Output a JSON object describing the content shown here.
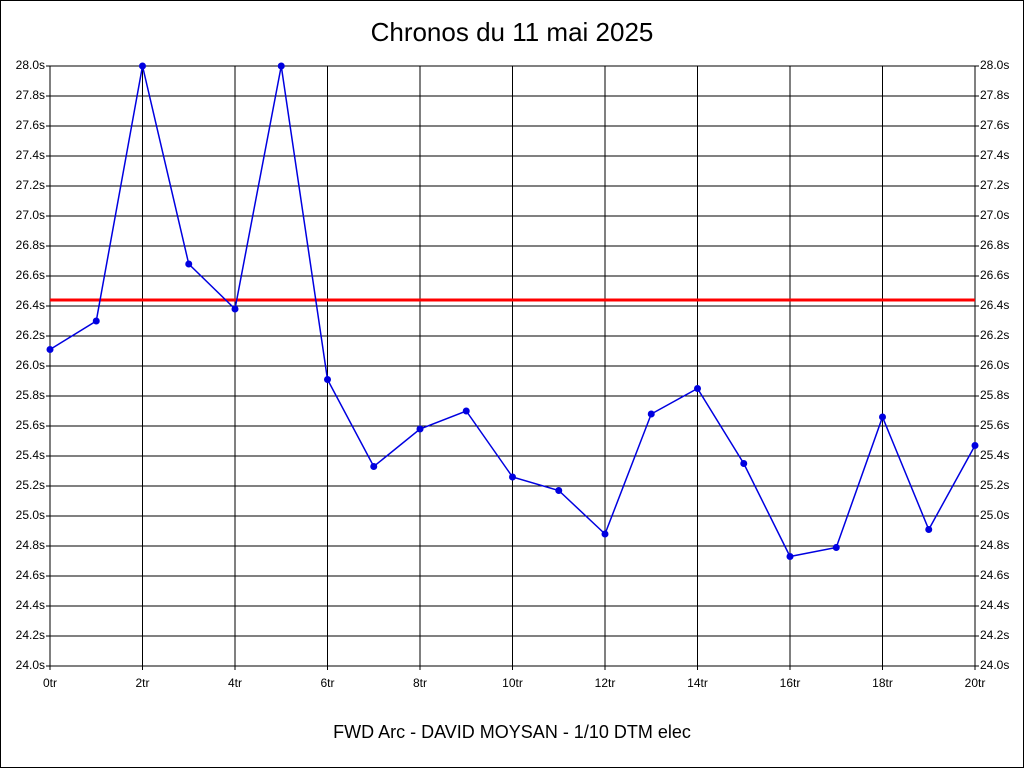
{
  "chart_data": {
    "type": "line",
    "title": "Chronos du 11 mai 2025",
    "footer": "FWD Arc - DAVID MOYSAN - 1/10 DTM elec",
    "x": [
      0,
      1,
      2,
      3,
      4,
      5,
      6,
      7,
      8,
      9,
      10,
      11,
      12,
      13,
      14,
      15,
      16,
      17,
      18,
      19,
      20
    ],
    "series": [
      {
        "color": "#0000e0",
        "values": [
          26.11,
          26.3,
          28.0,
          26.68,
          26.38,
          28.0,
          25.91,
          25.33,
          25.58,
          25.7,
          25.26,
          25.17,
          24.88,
          25.68,
          25.85,
          25.35,
          24.73,
          24.79,
          25.66,
          24.91,
          25.47
        ]
      }
    ],
    "reference_line": {
      "value": 26.44,
      "color": "#ff0000"
    },
    "xlim": [
      0,
      20
    ],
    "xticks": [
      {
        "value": 0,
        "label": "0tr"
      },
      {
        "value": 2,
        "label": "2tr"
      },
      {
        "value": 4,
        "label": "4tr"
      },
      {
        "value": 6,
        "label": "6tr"
      },
      {
        "value": 8,
        "label": "8tr"
      },
      {
        "value": 10,
        "label": "10tr"
      },
      {
        "value": 12,
        "label": "12tr"
      },
      {
        "value": 14,
        "label": "14tr"
      },
      {
        "value": 16,
        "label": "16tr"
      },
      {
        "value": 18,
        "label": "18tr"
      },
      {
        "value": 20,
        "label": "20tr"
      }
    ],
    "ylim": [
      24.0,
      28.0
    ],
    "yticks": [
      {
        "value": 24.0,
        "label": "24.0s"
      },
      {
        "value": 24.2,
        "label": "24.2s"
      },
      {
        "value": 24.4,
        "label": "24.4s"
      },
      {
        "value": 24.6,
        "label": "24.6s"
      },
      {
        "value": 24.8,
        "label": "24.8s"
      },
      {
        "value": 25.0,
        "label": "25.0s"
      },
      {
        "value": 25.2,
        "label": "25.2s"
      },
      {
        "value": 25.4,
        "label": "25.4s"
      },
      {
        "value": 25.6,
        "label": "25.6s"
      },
      {
        "value": 25.8,
        "label": "25.8s"
      },
      {
        "value": 26.0,
        "label": "26.0s"
      },
      {
        "value": 26.2,
        "label": "26.2s"
      },
      {
        "value": 26.4,
        "label": "26.4s"
      },
      {
        "value": 26.6,
        "label": "26.6s"
      },
      {
        "value": 26.8,
        "label": "26.8s"
      },
      {
        "value": 27.0,
        "label": "27.0s"
      },
      {
        "value": 27.2,
        "label": "27.2s"
      },
      {
        "value": 27.4,
        "label": "27.4s"
      },
      {
        "value": 27.6,
        "label": "27.6s"
      },
      {
        "value": 27.8,
        "label": "27.8s"
      },
      {
        "value": 28.0,
        "label": "28.0s"
      }
    ],
    "grid": true
  }
}
